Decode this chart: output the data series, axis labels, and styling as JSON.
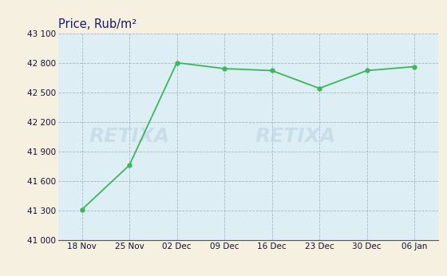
{
  "x_labels": [
    "18 Nov",
    "25 Nov",
    "02 Dec",
    "09 Dec",
    "16 Dec",
    "23 Dec",
    "30 Dec",
    "06 Jan"
  ],
  "y_values": [
    41310,
    41760,
    42800,
    42740,
    42720,
    42540,
    42720,
    42760
  ],
  "y_ticks": [
    41000,
    41300,
    41600,
    41900,
    42200,
    42500,
    42800,
    43100
  ],
  "y_tick_labels": [
    "41 000",
    "41 300",
    "41 600",
    "41 900",
    "42 200",
    "42 500",
    "42 800",
    "43 100"
  ],
  "ylim": [
    41000,
    43100
  ],
  "title": "Price, Rub/m²",
  "line_color": "#33bb55",
  "marker_color": "#33bb55",
  "bg_color": "#ddeef5",
  "outer_bg": "#f5f0e0",
  "grid_color": "#99aabb",
  "title_color": "#1a1a6e",
  "tick_label_color": "#111133",
  "watermark_color": "#bbd4e2",
  "watermark_alpha": 0.6,
  "watermark_fontsize": 18
}
